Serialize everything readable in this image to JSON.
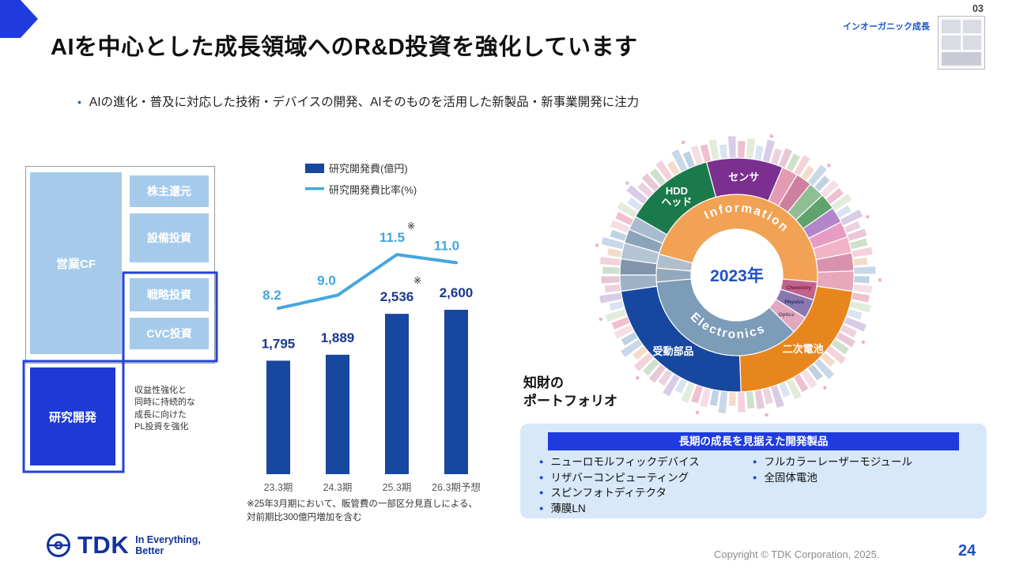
{
  "colors": {
    "accent_blue": "#1F3BE0",
    "brand_blue": "#12329B",
    "bar_blue": "#17479E",
    "line_blue": "#45A7DC",
    "light_box_blue": "#A6CBEA",
    "dark_box_blue": "#1E3AD4",
    "panel_bg": "#D7E8F8",
    "center_year_blue": "#1E50C8"
  },
  "header": {
    "title": "AIを中心とした成長領域へのR&D投資を強化しています",
    "tag": "インオーガニック成長",
    "page_badge": "03",
    "bullet": "AIの進化・普及に対応した技術・デバイスの開発、AIそのものを活用した新製品・新事業開発に注力"
  },
  "cashflow": {
    "source_box": "営業CF",
    "allocation_boxes": [
      "株主還元",
      "設備投資",
      "戦略投資",
      "CVC投資"
    ],
    "rd_box": "研究開発",
    "annotation_lines": [
      "収益性強化と",
      "同時に持続的な",
      "成長に向けた",
      "PL投資を強化"
    ]
  },
  "chart_data": [
    {
      "type": "bar",
      "categories": [
        "23.3期",
        "24.3期",
        "25.3期",
        "26.3期予想"
      ],
      "series": [
        {
          "name": "研究開発費(億円)",
          "kind": "bar",
          "values": [
            1795,
            1889,
            2536,
            2600
          ],
          "value_labels": [
            "1,795",
            "1,889",
            "2,536",
            "2,600"
          ],
          "color": "#17479E"
        },
        {
          "name": "研究開発費比率(%)",
          "kind": "line",
          "values": [
            8.2,
            9.0,
            11.5,
            11.0
          ],
          "value_labels": [
            "8.2",
            "9.0",
            "11.5",
            "11.0"
          ],
          "color": "#45A7DC"
        }
      ],
      "ylim": [
        0,
        3000
      ],
      "note_marker": "※",
      "marked_index": 2,
      "footnote_lines": [
        "※25年3月期において、販管費の一部区分見直しによる、",
        "対前期比300億円増加を含む"
      ]
    },
    {
      "type": "sunburst",
      "center_label": "2023年",
      "rings": {
        "inner": [
          {
            "label": "Information",
            "start": 285,
            "end": 455,
            "color": "#F2A254"
          },
          {
            "label": "Chemistry",
            "start": 95,
            "end": 108,
            "color": "#C2628C",
            "label_color": "#6B1F3A"
          },
          {
            "label": "Physics",
            "start": 108,
            "end": 122,
            "color": "#8878B0",
            "label_color": "#2B2B66"
          },
          {
            "label": "Optics",
            "start": 122,
            "end": 135,
            "color": "#E2A8C0",
            "label_color": "#5A4A55"
          },
          {
            "label": "Electronics",
            "start": 135,
            "end": 265,
            "color": "#7C9CB8"
          },
          {
            "label": "",
            "start": 265,
            "end": 275,
            "color": "#93A7BA"
          },
          {
            "label": "",
            "start": 275,
            "end": 285,
            "color": "#AFBECB"
          }
        ],
        "middle": [
          {
            "label": "HDD\nヘッド",
            "start": 300,
            "end": 345,
            "color": "#1B7A4B"
          },
          {
            "label": "センサ",
            "start": 345,
            "end": 383,
            "color": "#7B2F8E"
          },
          {
            "label": "",
            "start": 23,
            "end": 31,
            "color": "#E39BB3"
          },
          {
            "label": "",
            "start": 31,
            "end": 39,
            "color": "#CE7FA0"
          },
          {
            "label": "",
            "start": 39,
            "end": 47,
            "color": "#8FBE92"
          },
          {
            "label": "",
            "start": 47,
            "end": 55,
            "color": "#5EA36B"
          },
          {
            "label": "",
            "start": 55,
            "end": 63,
            "color": "#B287C9"
          },
          {
            "label": "",
            "start": 63,
            "end": 71,
            "color": "#E79CC4"
          },
          {
            "label": "",
            "start": 71,
            "end": 79,
            "color": "#F2B3C6"
          },
          {
            "label": "",
            "start": 79,
            "end": 88,
            "color": "#D793AE"
          },
          {
            "label": "",
            "start": 88,
            "end": 98,
            "color": "#E8A8BC"
          },
          {
            "label": "二次電池",
            "start": 98,
            "end": 178,
            "color": "#E8861E"
          },
          {
            "label": "受動部品",
            "start": 178,
            "end": 262,
            "color": "#17479E"
          },
          {
            "label": "",
            "start": 262,
            "end": 270,
            "color": "#9DB2C6"
          },
          {
            "label": "",
            "start": 270,
            "end": 278,
            "color": "#8094AC"
          },
          {
            "label": "",
            "start": 278,
            "end": 286,
            "color": "#B3C5D4"
          },
          {
            "label": "",
            "start": 286,
            "end": 293,
            "color": "#8CA4B9"
          },
          {
            "label": "",
            "start": 293,
            "end": 300,
            "color": "#A9BCCF"
          }
        ],
        "outer_ring": {
          "count": 88,
          "palette": [
            "#EFC0CE",
            "#F4D2DC",
            "#D9E4F0",
            "#C9D8E8",
            "#EBD2DE",
            "#F6DEE6",
            "#CFE0CC",
            "#E3ECDA",
            "#F4DCCB",
            "#D8CCE6",
            "#BFD2E4",
            "#E8C8D6"
          ]
        }
      }
    }
  ],
  "ip_portfolio": {
    "label_lines": [
      "知財の",
      "ポートフォリオ"
    ]
  },
  "products_panel": {
    "header": "長期の成長を見据えた開発製品",
    "col1": [
      "ニューロモルフィックデバイス",
      "リザバーコンピューティング",
      "スピンフォトディテクタ",
      "薄膜LN"
    ],
    "col2": [
      "フルカラーレーザーモジュール",
      "全固体電池"
    ]
  },
  "footer": {
    "copyright": "Copyright © TDK Corporation, 2025.",
    "page_number": "24",
    "logo_text": "TDK",
    "logo_tagline_lines": [
      "In Everything,",
      "Better"
    ]
  }
}
